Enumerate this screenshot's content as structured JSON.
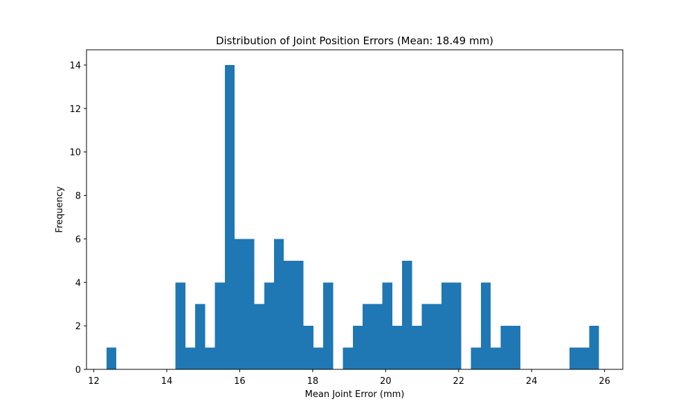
{
  "chart_data": {
    "type": "bar",
    "title": "Distribution of Joint Position Errors (Mean: 18.49 mm)",
    "xlabel": "Mean Joint Error (mm)",
    "ylabel": "Frequency",
    "xlim": [
      11.8,
      26.5
    ],
    "ylim": [
      0,
      14.7
    ],
    "xticks": [
      12,
      14,
      16,
      18,
      20,
      22,
      24,
      26
    ],
    "yticks": [
      0,
      2,
      4,
      6,
      8,
      10,
      12,
      14
    ],
    "grid": false,
    "bar_color": "#1f77b4",
    "bin_start": 12.35,
    "bin_width": 0.27,
    "counts": [
      1,
      0,
      0,
      0,
      0,
      0,
      0,
      4,
      1,
      3,
      1,
      4,
      14,
      6,
      6,
      3,
      4,
      6,
      5,
      5,
      2,
      1,
      4,
      0,
      1,
      2,
      3,
      3,
      4,
      2,
      5,
      2,
      3,
      3,
      4,
      4,
      0,
      1,
      4,
      1,
      2,
      2,
      0,
      0,
      0,
      0,
      0,
      1,
      1,
      2
    ]
  }
}
